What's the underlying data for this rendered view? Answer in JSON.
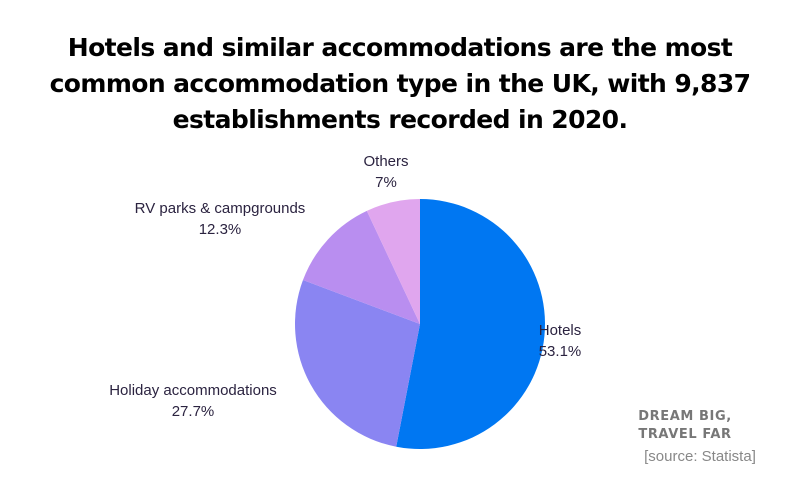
{
  "title": "Hotels and similar accommodations are the most common accommodation type in the UK, with 9,837 establishments recorded in 2020.",
  "chart_data": {
    "type": "pie",
    "title": "Hotels and similar accommodations are the most common accommodation type in the UK, with 9,837 establishments recorded in 2020.",
    "categories": [
      "Hotels",
      "Holiday accommodations",
      "RV parks & campgrounds",
      "Others"
    ],
    "values": [
      53.1,
      27.7,
      12.3,
      7
    ],
    "unit": "%",
    "colors": [
      "#0077f2",
      "#8a85f2",
      "#b98ef0",
      "#e0a6ee"
    ],
    "start_angle": "12 o'clock, clockwise",
    "legend": "none (direct labels)"
  },
  "labels": [
    {
      "name": "Hotels",
      "value": "53.1%"
    },
    {
      "name": "Holiday accommodations",
      "value": "27.7%"
    },
    {
      "name": "RV parks & campgrounds",
      "value": "12.3%"
    },
    {
      "name": "Others",
      "value": "7%"
    }
  ],
  "brand": {
    "line1": "DREAM BIG,",
    "line2": "TRAVEL FAR"
  },
  "source": "[source: Statista]"
}
